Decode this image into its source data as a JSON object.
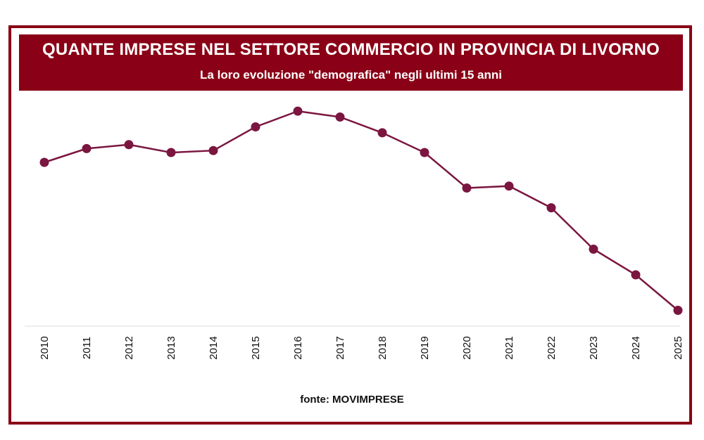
{
  "header": {
    "title": "QUANTE IMPRESE NEL SETTORE COMMERCIO IN PROVINCIA DI LIVORNO",
    "subtitle": "La loro evoluzione \"demografica\" negli ultimi 15 anni"
  },
  "footer": {
    "source": "fonte: MOVIMPRESE"
  },
  "colors": {
    "brand": "#8a0016",
    "line": "#7a1640",
    "marker": "#7a1640",
    "axis": "#dddddd"
  },
  "chart_data": {
    "type": "line",
    "title": "QUANTE IMPRESE NEL SETTORE COMMERCIO IN PROVINCIA DI LIVORNO",
    "subtitle": "La loro evoluzione \"demografica\" negli ultimi 15 anni",
    "xlabel": "",
    "ylabel": "",
    "y_axis_visible": false,
    "grid": false,
    "legend": "none",
    "categories": [
      "2010",
      "2011",
      "2012",
      "2013",
      "2014",
      "2015",
      "2016",
      "2017",
      "2018",
      "2019",
      "2020",
      "2021",
      "2022",
      "2023",
      "2024",
      "2025"
    ],
    "series": [
      {
        "values": [
          75,
          82,
          84,
          80,
          81,
          93,
          101,
          98,
          90,
          80,
          62,
          63,
          52,
          31,
          18,
          0
        ]
      }
    ],
    "note": "",
    "ylim": [
      -8,
      111
    ]
  }
}
